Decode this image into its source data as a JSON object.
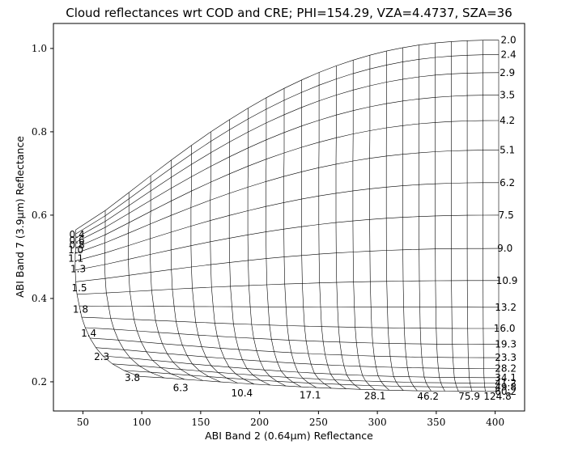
{
  "chart_data": {
    "type": "line",
    "title": "Cloud reflectances wrt COD and CRE; PHI=154.29, VZA=4.4737, SZA=36",
    "xlabel": "ABI Band 2 (0.64μm) Reflectance",
    "ylabel": "ABI Band 7 (3.9μm) Reflectance",
    "xlim": [
      25,
      425
    ],
    "ylim": [
      0.13,
      1.06
    ],
    "xticks": [
      50,
      100,
      150,
      200,
      250,
      300,
      350,
      400
    ],
    "yticks": [
      0.2,
      0.4,
      0.6,
      0.8,
      1.0
    ],
    "ytick_labels": [
      "0.2",
      "0.4",
      "0.6",
      "0.8",
      "1.0"
    ],
    "grid": false,
    "description_of_mesh": "Mesh of lines: curves of constant cloud effective radius (labelled at right end) and curves of constant optical depth (labelled along bottom).",
    "cre_labels": [
      "2.0",
      "2.4",
      "2.9",
      "3.5",
      "4.2",
      "5.1",
      "6.2",
      "7.5",
      "9.0",
      "10.9",
      "13.2",
      "16.0",
      "19.3",
      "23.3",
      "28.2",
      "34.1",
      "41.2",
      "49.8",
      "60.2"
    ],
    "cre_label_points": [
      {
        "label": "2.0",
        "x": 402,
        "y": 1.02
      },
      {
        "label": "2.4",
        "x": 402,
        "y": 0.985
      },
      {
        "label": "2.9",
        "x": 401,
        "y": 0.942
      },
      {
        "label": "3.5",
        "x": 401,
        "y": 0.888
      },
      {
        "label": "4.2",
        "x": 401,
        "y": 0.827
      },
      {
        "label": "5.1",
        "x": 401,
        "y": 0.756
      },
      {
        "label": "6.2",
        "x": 401,
        "y": 0.678
      },
      {
        "label": "7.5",
        "x": 400,
        "y": 0.6
      },
      {
        "label": "9.0",
        "x": 399,
        "y": 0.52
      },
      {
        "label": "10.9",
        "x": 398,
        "y": 0.443
      },
      {
        "label": "13.2",
        "x": 397,
        "y": 0.379
      },
      {
        "label": "16.0",
        "x": 396,
        "y": 0.328
      },
      {
        "label": "19.3",
        "x": 397,
        "y": 0.29
      },
      {
        "label": "23.3",
        "x": 397,
        "y": 0.258
      },
      {
        "label": "28.2",
        "x": 397,
        "y": 0.232
      },
      {
        "label": "34.1",
        "x": 397,
        "y": 0.21
      },
      {
        "label": "41.2",
        "x": 397,
        "y": 0.197
      },
      {
        "label": "49.8",
        "x": 397,
        "y": 0.187
      },
      {
        "label": "60.2",
        "x": 397,
        "y": 0.177
      }
    ],
    "cod_labels": [
      "0.4",
      "0.6",
      "0.8",
      "1.0",
      "1.1",
      "1.3",
      "1.5",
      "1.8",
      "1.4",
      "2.3",
      "3.8",
      "6.3",
      "10.4",
      "17.1",
      "28.1",
      "46.2",
      "75.9",
      "124.8"
    ],
    "cod_label_points": [
      {
        "label": "0.4",
        "x": 45,
        "y": 0.555
      },
      {
        "label": "0.6",
        "x": 45,
        "y": 0.542
      },
      {
        "label": "0.8",
        "x": 45,
        "y": 0.53
      },
      {
        "label": "1.0",
        "x": 44,
        "y": 0.518
      },
      {
        "label": "1.1",
        "x": 44,
        "y": 0.498
      },
      {
        "label": "1.3",
        "x": 46,
        "y": 0.473
      },
      {
        "label": "1.5",
        "x": 47,
        "y": 0.427
      },
      {
        "label": "1.8",
        "x": 48,
        "y": 0.376
      },
      {
        "label": "1.4",
        "x": 55,
        "y": 0.318
      },
      {
        "label": "2.3",
        "x": 66,
        "y": 0.262
      },
      {
        "label": "3.8",
        "x": 92,
        "y": 0.212
      },
      {
        "label": "6.3",
        "x": 133,
        "y": 0.187
      },
      {
        "label": "10.4",
        "x": 185,
        "y": 0.175
      },
      {
        "label": "17.1",
        "x": 243,
        "y": 0.17
      },
      {
        "label": "28.1",
        "x": 298,
        "y": 0.168
      },
      {
        "label": "46.2",
        "x": 343,
        "y": 0.167
      },
      {
        "label": "75.9",
        "x": 378,
        "y": 0.167
      },
      {
        "label": "124.8",
        "x": 402,
        "y": 0.167
      }
    ]
  }
}
